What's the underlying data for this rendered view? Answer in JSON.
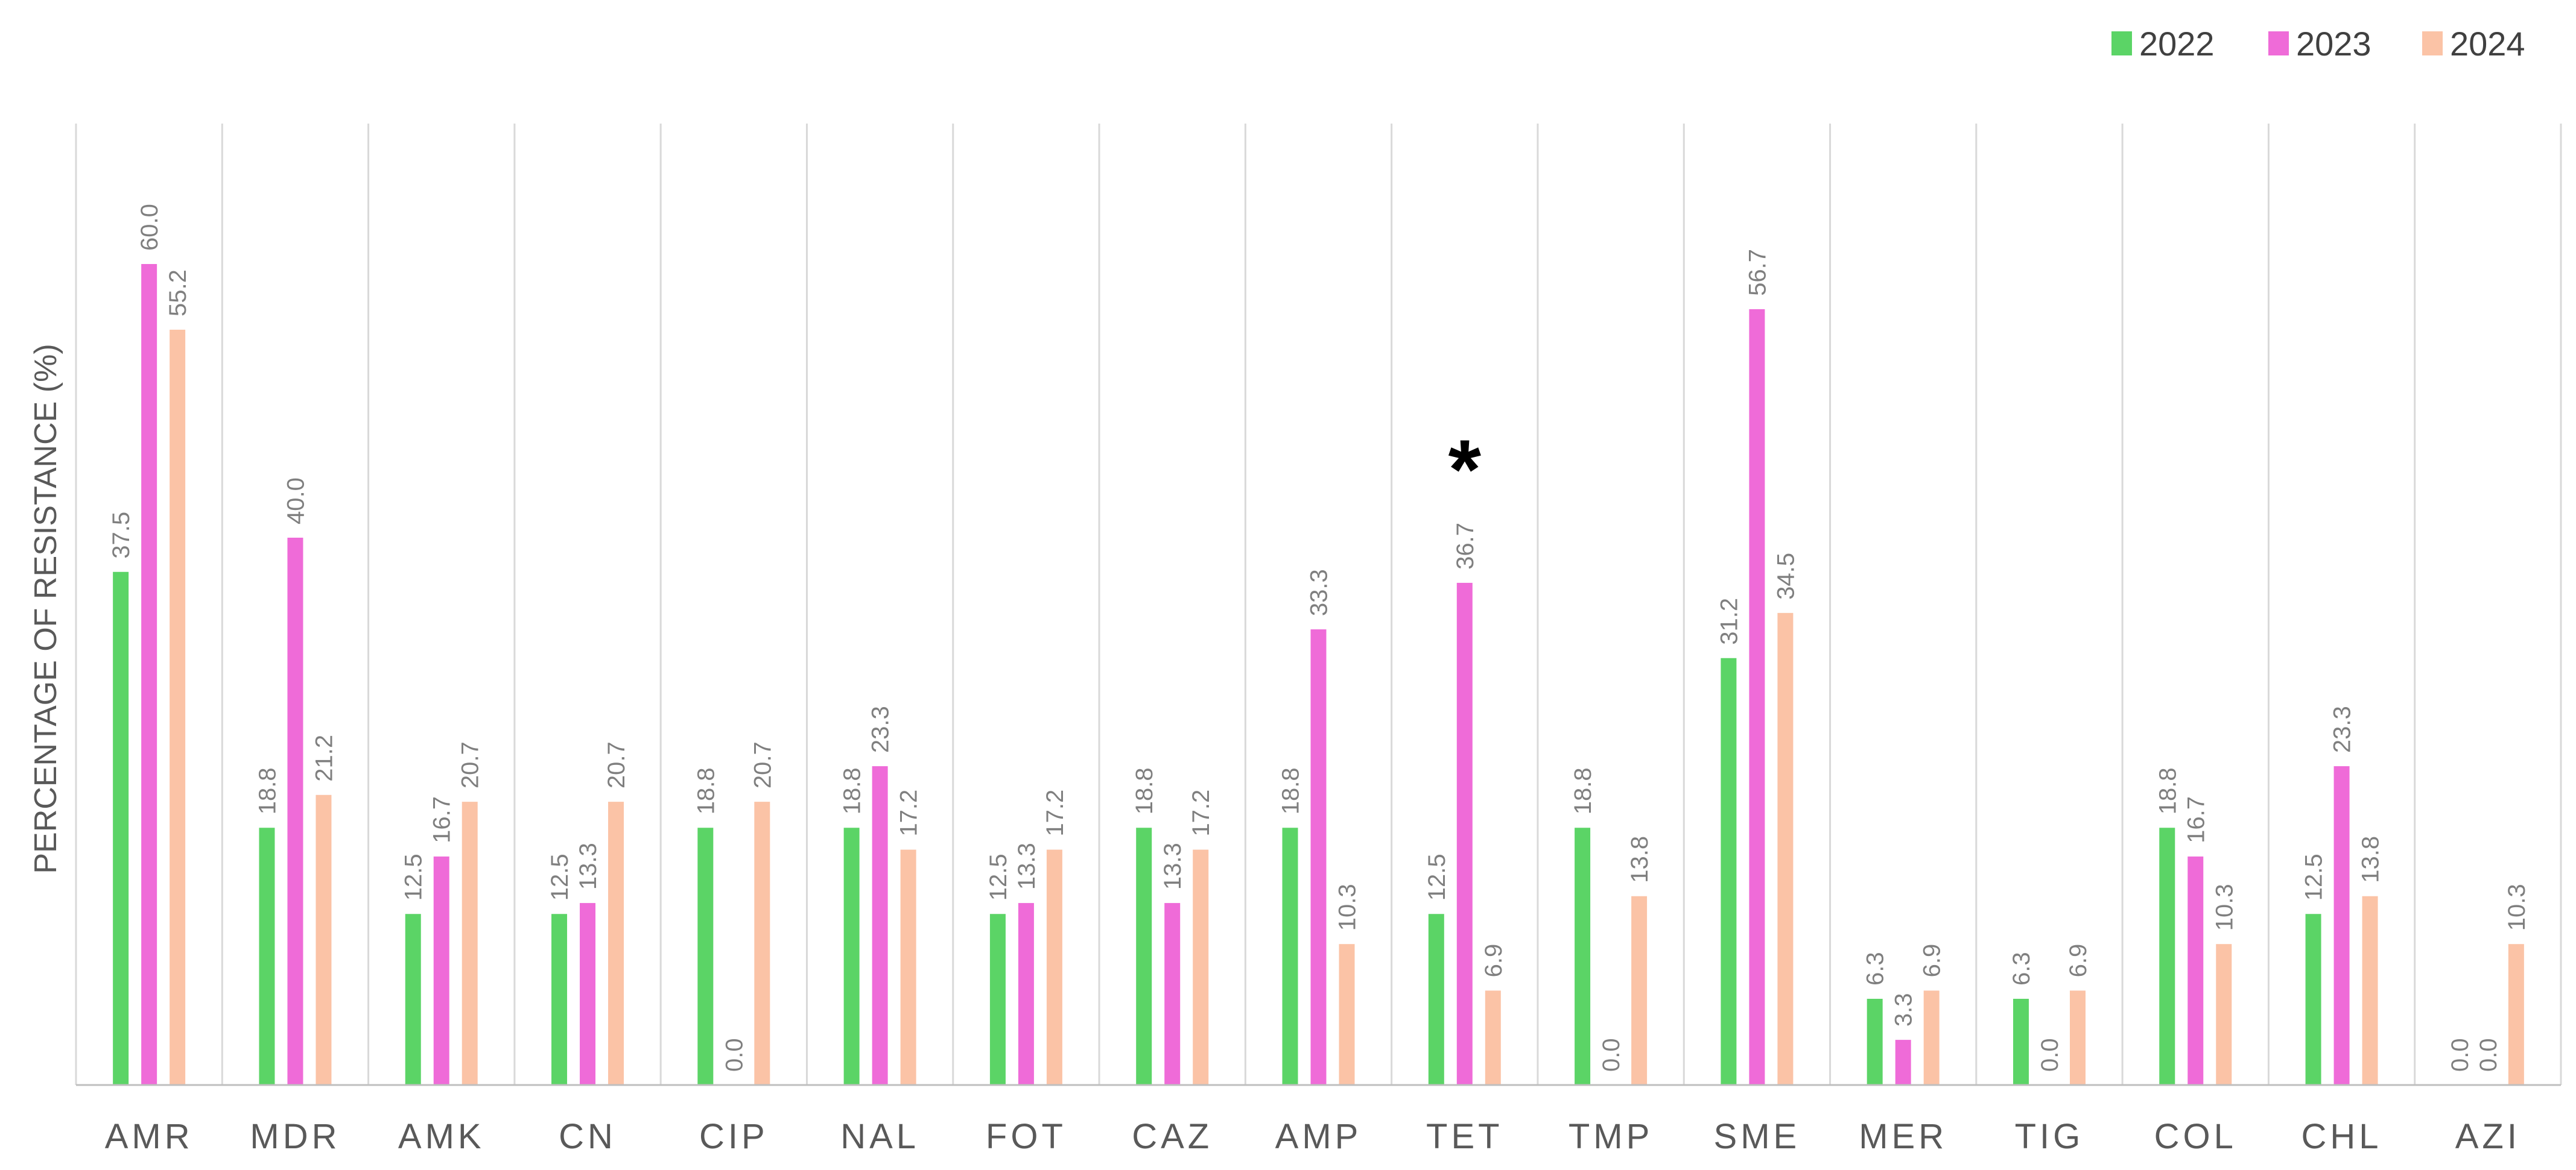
{
  "chart_data": {
    "type": "bar",
    "ylabel": "PERCENTAGE OF RESISTANCE (%)",
    "xlabel": "",
    "categories": [
      "AMR",
      "MDR",
      "AMK",
      "CN",
      "CIP",
      "NAL",
      "FOT",
      "CAZ",
      "AMP",
      "TET",
      "TMP",
      "SME",
      "MER",
      "TIG",
      "COL",
      "CHL",
      "AZI"
    ],
    "series": [
      {
        "name": "2022",
        "color": "#5bd466",
        "values": [
          37.5,
          18.8,
          12.5,
          12.5,
          18.8,
          18.8,
          12.5,
          18.8,
          18.8,
          12.5,
          18.8,
          31.2,
          6.3,
          6.3,
          18.8,
          12.5,
          0.0
        ]
      },
      {
        "name": "2023",
        "color": "#ef6bd8",
        "values": [
          60.0,
          40.0,
          16.7,
          13.3,
          0.0,
          23.3,
          13.3,
          13.3,
          33.3,
          36.7,
          0.0,
          56.7,
          3.3,
          0.0,
          16.7,
          23.3,
          0.0
        ]
      },
      {
        "name": "2024",
        "color": "#fbc3a6",
        "values": [
          55.2,
          21.2,
          20.7,
          20.7,
          20.7,
          17.2,
          17.2,
          17.2,
          10.3,
          6.9,
          13.8,
          34.5,
          6.9,
          6.9,
          10.3,
          13.8,
          10.3
        ]
      }
    ],
    "ylim": [
      0,
      70
    ],
    "grid": "vertical separators",
    "legend_position": "top-right",
    "annotations": [
      {
        "text": "*",
        "category": "TET"
      }
    ]
  }
}
